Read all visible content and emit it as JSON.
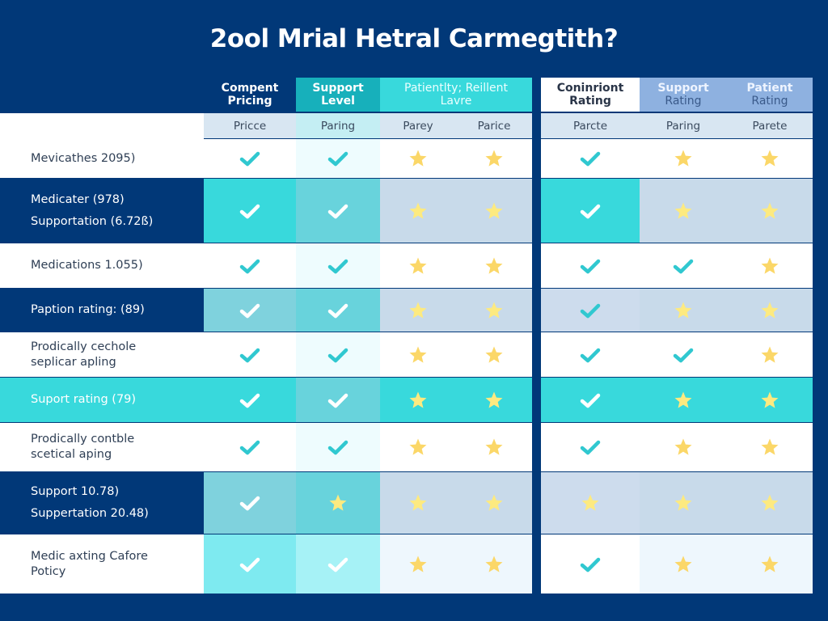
{
  "title": "2ool Mrial Hetral Carmegtith?",
  "colors": {
    "background": "#013878",
    "teal": "#38d9dc",
    "teal_mid": "#68d3dc",
    "teal_light": "#e9fbfd",
    "steel": "#c8daea",
    "check_teal": "#30c8d0",
    "star_gold": "#fbd768",
    "star_light": "#fdea80"
  },
  "left_table": {
    "headers": [
      {
        "label_1": "Compent",
        "label_2": "Pricing"
      },
      {
        "label_1": "Support",
        "label_2": "Level"
      },
      {
        "label_1": "Patientlty; Reillent",
        "label_2": "Lavre"
      }
    ],
    "subheaders": [
      "Pricce",
      "Paring",
      "Parey",
      "Parice"
    ]
  },
  "right_table": {
    "headers": [
      {
        "label_1": "Coninriont",
        "label_2": "Rating"
      },
      {
        "label_1": "Support",
        "label_2": "Rating"
      },
      {
        "label_1": "Patient",
        "label_2": "Rating"
      }
    ],
    "subheaders": [
      "Parcte",
      "Paring",
      "Parete"
    ]
  },
  "rows": [
    {
      "label_1": "Mevicathes 2095)",
      "label_2": "",
      "style": "light",
      "left": [
        "check",
        "check",
        "star",
        "star"
      ],
      "right": [
        "check",
        "star",
        "star"
      ]
    },
    {
      "label_1": "Medicater (978)",
      "label_2": "Supportation (6.72ß)",
      "style": "dark",
      "left": [
        "check",
        "check",
        "star",
        "star"
      ],
      "right": [
        "check",
        "star",
        "star"
      ]
    },
    {
      "label_1": "Medications 1.055)",
      "label_2": "",
      "style": "light",
      "left": [
        "check",
        "check",
        "star",
        "star"
      ],
      "right": [
        "check",
        "check",
        "star"
      ]
    },
    {
      "label_1": "Paption rating: (89)",
      "label_2": "",
      "style": "dark",
      "left": [
        "check",
        "check",
        "star",
        "star"
      ],
      "right": [
        "check",
        "star",
        "star"
      ]
    },
    {
      "label_1": "Prodically cechole",
      "label_2": "seplicar apling",
      "style": "light",
      "left": [
        "check",
        "check",
        "star",
        "star"
      ],
      "right": [
        "check",
        "check",
        "star"
      ]
    },
    {
      "label_1": "Suport rating (79)",
      "label_2": "",
      "style": "teal",
      "left": [
        "check",
        "check",
        "star",
        "star"
      ],
      "right": [
        "check",
        "star",
        "star"
      ]
    },
    {
      "label_1": "Prodically contble",
      "label_2": "scetical aping",
      "style": "light",
      "left": [
        "check",
        "check",
        "star",
        "star"
      ],
      "right": [
        "check",
        "star",
        "star"
      ]
    },
    {
      "label_1": "Support 10.78)",
      "label_2": "Suppertation 20.48)",
      "style": "dark",
      "left": [
        "check",
        "star",
        "star",
        "star"
      ],
      "right": [
        "star",
        "star",
        "star"
      ]
    },
    {
      "label_1": "Medic axting Cafore",
      "label_2": "Poticy",
      "style": "light",
      "left": [
        "check",
        "check",
        "star",
        "star"
      ],
      "right": [
        "check",
        "star",
        "star"
      ]
    }
  ]
}
